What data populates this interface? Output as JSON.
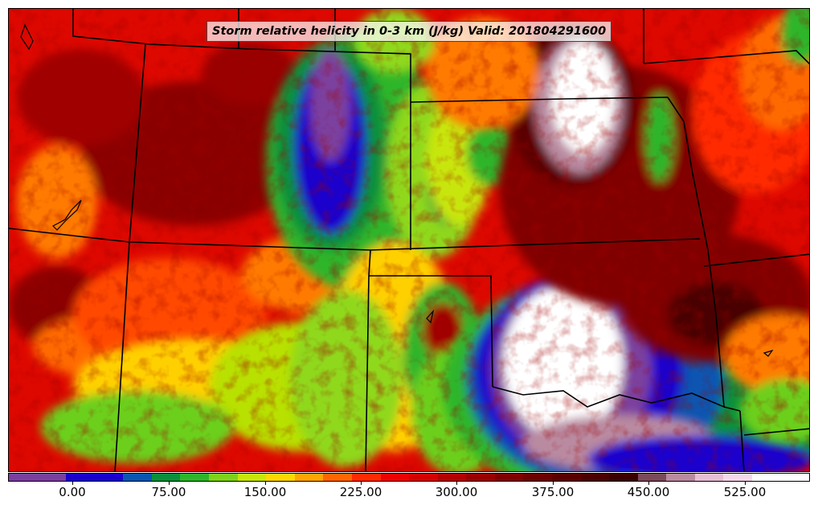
{
  "title": "Storm relative helicity in 0-3 km (J/kg) Valid: 201804291600",
  "colorbar": {
    "colors": [
      "#7b3f9e",
      "#7b3f9e",
      "#1a00cc",
      "#1a00cc",
      "#0a55b0",
      "#0a8f3a",
      "#2fb52b",
      "#7fd21c",
      "#c8e60a",
      "#ffd700",
      "#ffa500",
      "#ff6600",
      "#ff2a00",
      "#ee0000",
      "#d40000",
      "#b30000",
      "#990000",
      "#800000",
      "#6b0000",
      "#5a0000",
      "#4a0000",
      "#3a0000",
      "#7a4a5a",
      "#b98aa0",
      "#e6bfd4",
      "#f5d9ea",
      "#ffffff",
      "#ffffff"
    ],
    "tick_labels": [
      "0.00",
      "75.00",
      "150.00",
      "225.00",
      "300.00",
      "375.00",
      "450.00",
      "525.00"
    ]
  }
}
